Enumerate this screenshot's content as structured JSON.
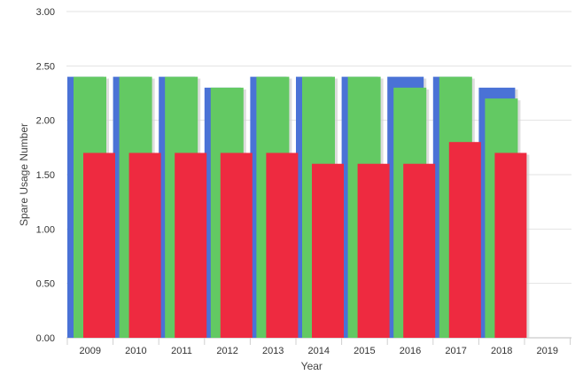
{
  "chart_data": {
    "type": "bar",
    "title": "",
    "xlabel": "Year",
    "ylabel": "Spare Usage Number",
    "ylim": [
      0,
      3
    ],
    "yticks": [
      "0.00",
      "0.50",
      "1.00",
      "1.50",
      "2.00",
      "2.50",
      "3.00"
    ],
    "categories": [
      "2009",
      "2010",
      "2011",
      "2012",
      "2013",
      "2014",
      "2015",
      "2016",
      "2017",
      "2018",
      "2019"
    ],
    "grid": true,
    "legend": "none",
    "series": [
      {
        "color": "#4a72d6",
        "values": [
          2.4,
          2.4,
          2.4,
          2.3,
          2.4,
          2.4,
          2.4,
          2.4,
          2.4,
          2.3,
          null
        ]
      },
      {
        "color": "#63c963",
        "values": [
          2.4,
          2.4,
          2.4,
          2.3,
          2.4,
          2.4,
          2.4,
          2.3,
          2.4,
          2.2,
          null
        ]
      },
      {
        "color": "#ee2a40",
        "values": [
          1.7,
          1.7,
          1.7,
          1.7,
          1.7,
          1.6,
          1.6,
          1.6,
          1.8,
          1.7,
          null
        ]
      }
    ]
  }
}
